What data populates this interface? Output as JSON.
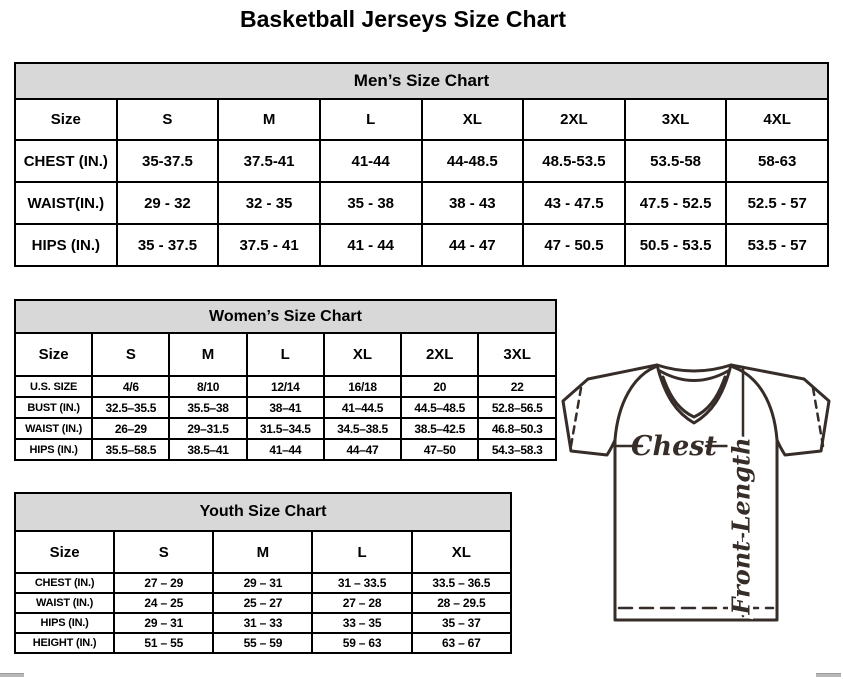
{
  "page": {
    "title": "Basketball Jerseys Size Chart"
  },
  "colors": {
    "table_header_bg": "#d8d8d8",
    "table_border": "#000000",
    "diagram_stroke": "#362c28"
  },
  "tables": {
    "men": {
      "title": "Men’s Size Chart",
      "header": [
        "Size",
        "S",
        "M",
        "L",
        "XL",
        "2XL",
        "3XL",
        "4XL"
      ],
      "rows": [
        {
          "label": "CHEST (IN.)",
          "values": [
            "35-37.5",
            "37.5-41",
            "41-44",
            "44-48.5",
            "48.5-53.5",
            "53.5-58",
            "58-63"
          ]
        },
        {
          "label": "WAIST(IN.)",
          "values": [
            "29 - 32",
            "32 - 35",
            "35 - 38",
            "38 - 43",
            "43 - 47.5",
            "47.5 - 52.5",
            "52.5 - 57"
          ]
        },
        {
          "label": "HIPS (IN.)",
          "values": [
            "35 - 37.5",
            "37.5 - 41",
            "41 - 44",
            "44 - 47",
            "47 - 50.5",
            "50.5 - 53.5",
            "53.5 - 57"
          ]
        }
      ]
    },
    "women": {
      "title": "Women’s Size Chart",
      "header": [
        "Size",
        "S",
        "M",
        "L",
        "XL",
        "2XL",
        "3XL"
      ],
      "rows": [
        {
          "label": "U.S. SIZE",
          "values": [
            "4/6",
            "8/10",
            "12/14",
            "16/18",
            "20",
            "22"
          ]
        },
        {
          "label": "BUST (IN.)",
          "values": [
            "32.5–35.5",
            "35.5–38",
            "38–41",
            "41–44.5",
            "44.5–48.5",
            "52.8–56.5"
          ]
        },
        {
          "label": "WAIST (IN.)",
          "values": [
            "26–29",
            "29–31.5",
            "31.5–34.5",
            "34.5–38.5",
            "38.5–42.5",
            "46.8–50.3"
          ]
        },
        {
          "label": "HIPS (IN.)",
          "values": [
            "35.5–58.5",
            "38.5–41",
            "41–44",
            "44–47",
            "47–50",
            "54.3–58.3"
          ]
        }
      ]
    },
    "youth": {
      "title": "Youth Size Chart",
      "header": [
        "Size",
        "S",
        "M",
        "L",
        "XL"
      ],
      "rows": [
        {
          "label": "CHEST (IN.)",
          "values": [
            "27 – 29",
            "29 – 31",
            "31 – 33.5",
            "33.5 – 36.5"
          ]
        },
        {
          "label": "WAIST (IN.)",
          "values": [
            "24 – 25",
            "25 – 27",
            "27 – 28",
            "28 – 29.5"
          ]
        },
        {
          "label": "HIPS (IN.)",
          "values": [
            "29 – 31",
            "31 – 33",
            "33 – 35",
            "35 – 37"
          ]
        },
        {
          "label": "HEIGHT (IN.)",
          "values": [
            "51 – 55",
            "55 – 59",
            "59 – 63",
            "63 – 67"
          ]
        }
      ]
    }
  },
  "diagram": {
    "chest_label": "Chest",
    "front_length_label": "Front Length"
  }
}
